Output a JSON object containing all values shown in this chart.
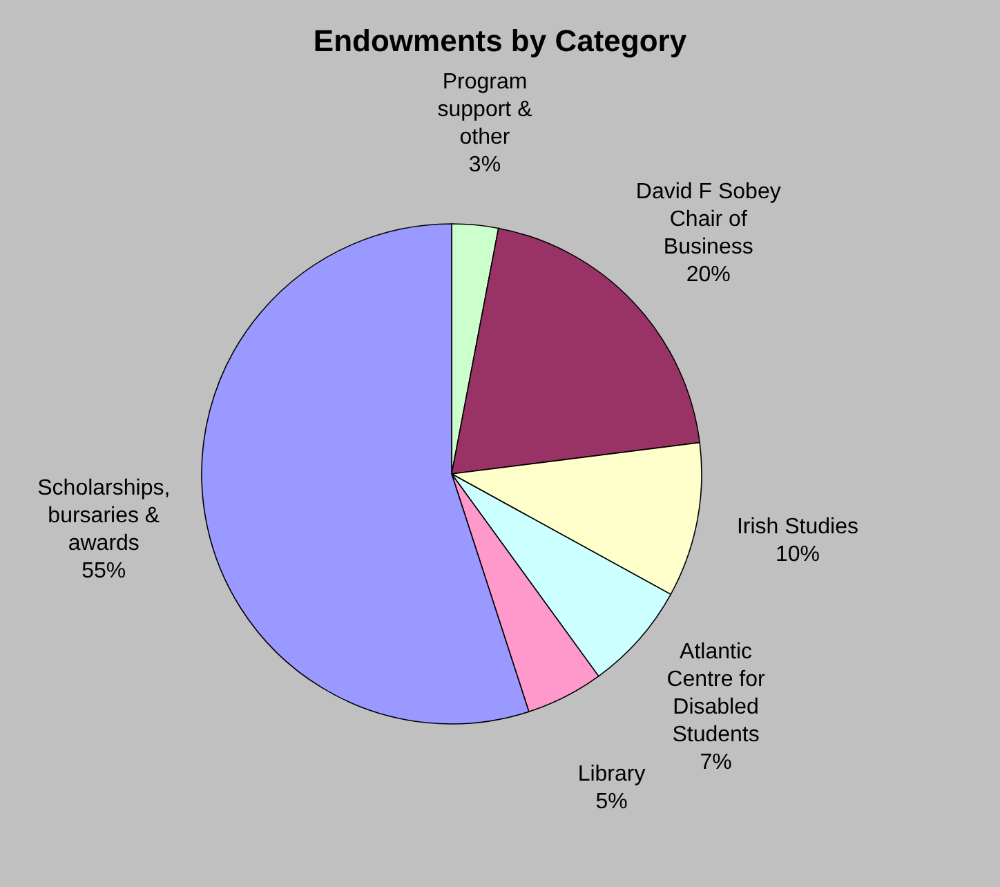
{
  "chart_data": {
    "type": "pie",
    "title": "Endowments by Category",
    "categories": [
      "Program support & other",
      "David F Sobey Chair of Business",
      "Irish Studies",
      "Atlantic Centre for Disabled Students",
      "Library",
      "Scholarships, bursaries & awards"
    ],
    "values": [
      3,
      20,
      10,
      7,
      5,
      55
    ],
    "colors": [
      "#ccffcc",
      "#993366",
      "#ffffcc",
      "#ccffff",
      "#ff99cc",
      "#9999ff"
    ],
    "value_labels": [
      "3%",
      "20%",
      "10%",
      "7%",
      "5%",
      "55%"
    ],
    "legend": false
  }
}
